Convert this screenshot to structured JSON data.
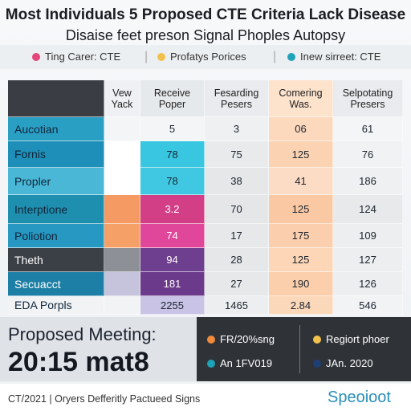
{
  "header": {
    "title_lines": [
      "Most Individuals 5 Proposed CTE Criteria Lack Disease",
      "Disaise feet preson Signal Phoples Autopsy"
    ]
  },
  "legend": [
    "Ting Carer: CTE",
    "Profatys Porices",
    "Inew sirreet: CTE"
  ],
  "table": {
    "columns": [
      "Vew Yack",
      "Receive Poper",
      "Fesarding Pesers",
      "Comering Was.",
      "Selpotating Presers"
    ],
    "rows": [
      [
        "Aucotian",
        "5",
        "3",
        "06",
        "61"
      ],
      [
        "Fornis",
        "78",
        "75",
        "125",
        "76"
      ],
      [
        "Propler",
        "78",
        "38",
        "41",
        "186"
      ],
      [
        "Interptione",
        "3.2",
        "70",
        "125",
        "124"
      ],
      [
        "Poliotion",
        "74",
        "17",
        "175",
        "109"
      ],
      [
        "Theth",
        "94",
        "28",
        "125",
        "127"
      ],
      [
        "Secuacct",
        "181",
        "27",
        "190",
        "126"
      ],
      [
        "EDA Porpls",
        "2255",
        "1465",
        "2.84",
        "546"
      ]
    ]
  },
  "meeting": {
    "label": "Proposed Meeting:",
    "time": "20:15 mat8"
  },
  "details": [
    "FR/20%sng",
    "Regiort phoer",
    "An 1FV019",
    "JAn. 2020"
  ],
  "footer": {
    "text": "CT/2021 | Oryers Defferitly Pactueed Signs",
    "logo": "Speoioot"
  }
}
